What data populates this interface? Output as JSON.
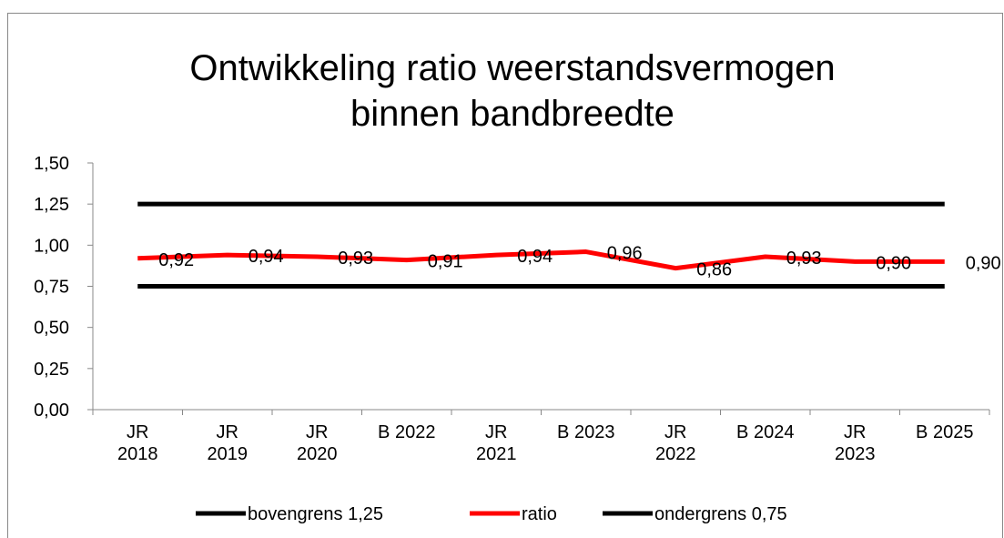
{
  "chart_data": {
    "type": "line",
    "title": [
      "Ontwikkeling ratio weerstandsvermogen",
      "binnen bandbreedte"
    ],
    "categories": [
      "JR\n2018",
      "JR\n2019",
      "JR\n2020",
      "B 2022",
      "JR\n2021",
      "B 2023",
      "JR\n2022",
      "B 2024",
      "JR\n2023",
      "B 2025"
    ],
    "series": [
      {
        "name": "bovengrens 1,25",
        "color": "#000000",
        "values": [
          1.25,
          1.25,
          1.25,
          1.25,
          1.25,
          1.25,
          1.25,
          1.25,
          1.25,
          1.25
        ]
      },
      {
        "name": "ratio",
        "color": "#ff0000",
        "values": [
          0.92,
          0.94,
          0.93,
          0.91,
          0.94,
          0.96,
          0.86,
          0.93,
          0.9,
          0.9
        ],
        "value_labels": [
          "0,92",
          "0,94",
          "0,93",
          "0,91",
          "0,94",
          "0,96",
          "0,86",
          "0,93",
          "0,90",
          "0,90"
        ]
      },
      {
        "name": "ondergrens 0,75",
        "color": "#000000",
        "values": [
          0.75,
          0.75,
          0.75,
          0.75,
          0.75,
          0.75,
          0.75,
          0.75,
          0.75,
          0.75
        ]
      }
    ],
    "ylim": [
      0,
      1.5
    ],
    "yticks": [
      {
        "value": 0,
        "label": "0,00"
      },
      {
        "value": 0.25,
        "label": "0,25"
      },
      {
        "value": 0.5,
        "label": "0,50"
      },
      {
        "value": 0.75,
        "label": "0,75"
      },
      {
        "value": 1,
        "label": "1,00"
      },
      {
        "value": 1.25,
        "label": "1,25"
      },
      {
        "value": 1.5,
        "label": "1,50"
      }
    ],
    "legend": "bottom"
  }
}
